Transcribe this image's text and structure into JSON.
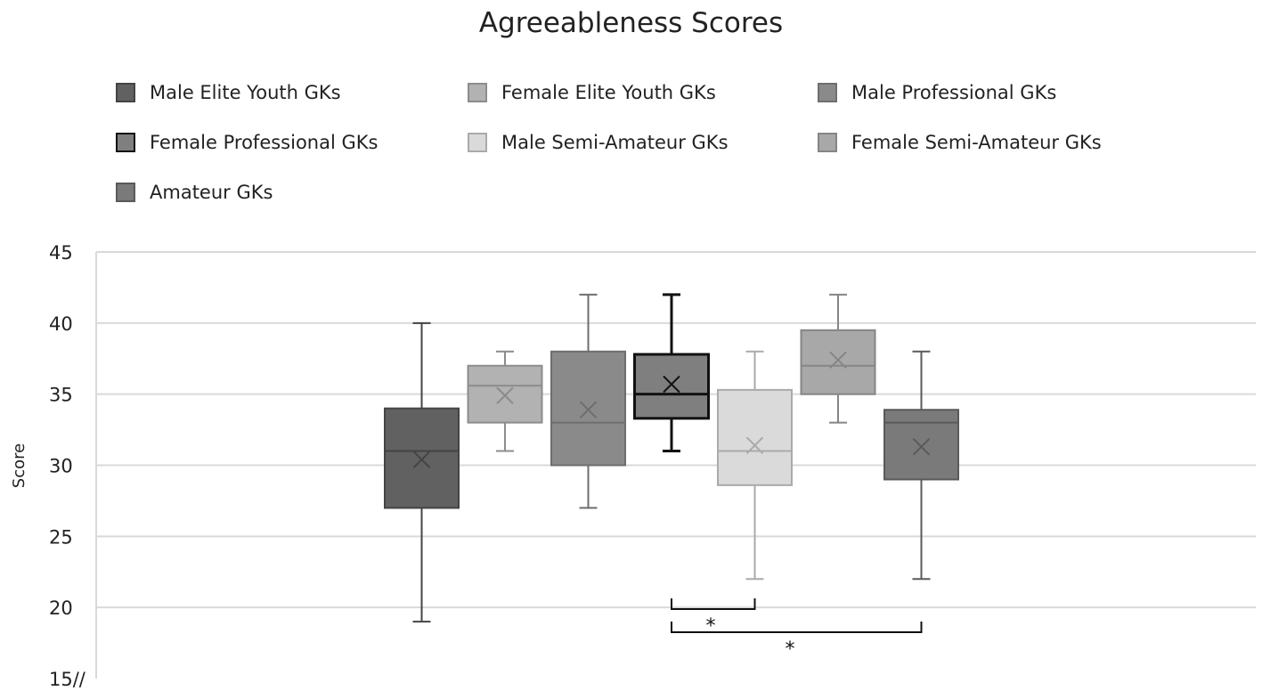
{
  "chart_data": {
    "type": "box",
    "title": "Agreeableness Scores",
    "ylabel": "Score",
    "xlabel": "",
    "ylim": [
      15,
      45
    ],
    "yticks": [
      15,
      20,
      25,
      30,
      35,
      40,
      45
    ],
    "ytick_labels": [
      "15//",
      "20",
      "25",
      "30",
      "35",
      "40",
      "45"
    ],
    "grid": true,
    "legend_position": "top",
    "series": [
      {
        "name": "Male Elite Youth GKs",
        "min": 19,
        "q1": 27,
        "median": 31,
        "q3": 34,
        "max": 40,
        "mean": 30.4,
        "fill": "#616161",
        "stroke": "#444444"
      },
      {
        "name": "Female Elite Youth GKs",
        "min": 31,
        "q1": 33,
        "median": 35.6,
        "q3": 37,
        "max": 38,
        "mean": 34.9,
        "fill": "#b2b2b2",
        "stroke": "#8c8c8c"
      },
      {
        "name": "Male Professional GKs",
        "min": 27,
        "q1": 30,
        "median": 33,
        "q3": 38,
        "max": 42,
        "mean": 33.9,
        "fill": "#8a8a8a",
        "stroke": "#6e6e6e"
      },
      {
        "name": "Female Professional GKs",
        "min": 31,
        "q1": 33.3,
        "median": 35,
        "q3": 37.8,
        "max": 42,
        "mean": 35.7,
        "fill": "#7f7f7f",
        "stroke": "#111111"
      },
      {
        "name": "Male Semi-Amateur GKs",
        "min": 22,
        "q1": 28.6,
        "median": 31,
        "q3": 35.3,
        "max": 38,
        "mean": 31.4,
        "fill": "#dadada",
        "stroke": "#aaaaaa"
      },
      {
        "name": "Female Semi-Amateur GKs",
        "min": 33,
        "q1": 35,
        "median": 37,
        "q3": 39.5,
        "max": 42,
        "mean": 37.4,
        "fill": "#a8a8a8",
        "stroke": "#858585"
      },
      {
        "name": "Amateur GKs",
        "min": 22,
        "q1": 29,
        "median": 33,
        "q3": 33.9,
        "max": 38,
        "mean": 31.3,
        "fill": "#7a7a7a",
        "stroke": "#5a5a5a"
      }
    ],
    "comparisons": [
      {
        "from": 3,
        "to": 4,
        "label": "*"
      },
      {
        "from": 3,
        "to": 6,
        "label": "*"
      }
    ]
  }
}
